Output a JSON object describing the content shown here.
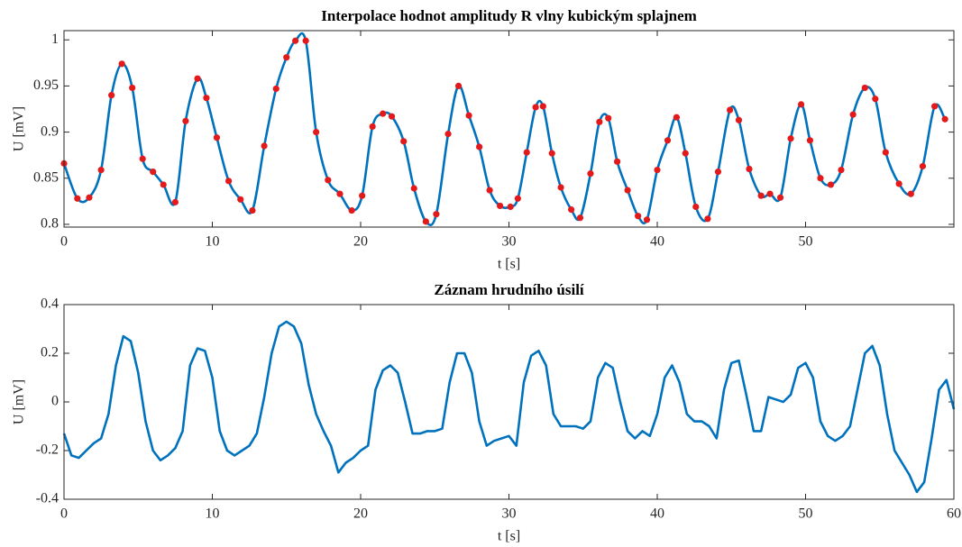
{
  "chart_data": [
    {
      "type": "line",
      "title": "Interpolace hodnot amplitudy R vlny kubickým splajnem",
      "xlabel": "t [s]",
      "ylabel": "U [mV]",
      "color": "#0072bd",
      "markers": true,
      "marker_color": "#e31a1c",
      "xlim": [
        0,
        60
      ],
      "xticks": [
        0,
        10,
        20,
        30,
        40,
        50
      ],
      "ylim": [
        0.797,
        1.01
      ],
      "yticks": [
        0.8,
        0.85,
        0.9,
        0.95,
        1
      ],
      "box": true,
      "x": [
        0,
        0.9,
        1.7,
        2.5,
        3.2,
        3.9,
        4.6,
        5.3,
        6.0,
        6.7,
        7.5,
        8.2,
        9.0,
        9.6,
        10.3,
        11.1,
        11.9,
        12.7,
        13.5,
        14.3,
        15.0,
        15.6,
        16.3,
        17.0,
        17.8,
        18.6,
        19.4,
        20.1,
        20.8,
        21.5,
        22.1,
        22.9,
        23.6,
        24.4,
        25.1,
        25.9,
        26.6,
        27.3,
        28.0,
        28.7,
        29.4,
        30.1,
        30.6,
        31.2,
        31.8,
        32.3,
        32.9,
        33.5,
        34.2,
        34.8,
        35.5,
        36.1,
        36.7,
        37.3,
        38.0,
        38.7,
        39.3,
        40.0,
        40.7,
        41.3,
        41.9,
        42.6,
        43.4,
        44.1,
        44.9,
        45.5,
        46.2,
        47.0,
        47.6,
        48.3,
        49.0,
        49.7,
        50.3,
        51.0,
        51.7,
        52.4,
        53.2,
        54.0,
        54.7,
        55.4,
        56.3,
        57.1,
        57.9,
        58.7,
        59.4
      ],
      "values": [
        0.866,
        0.828,
        0.829,
        0.859,
        0.94,
        0.974,
        0.948,
        0.871,
        0.857,
        0.843,
        0.824,
        0.912,
        0.958,
        0.937,
        0.894,
        0.847,
        0.827,
        0.815,
        0.885,
        0.947,
        0.981,
        0.999,
        0.999,
        0.9,
        0.848,
        0.833,
        0.815,
        0.831,
        0.906,
        0.92,
        0.917,
        0.89,
        0.839,
        0.803,
        0.811,
        0.898,
        0.95,
        0.918,
        0.884,
        0.837,
        0.82,
        0.819,
        0.828,
        0.878,
        0.927,
        0.928,
        0.877,
        0.84,
        0.816,
        0.807,
        0.855,
        0.911,
        0.915,
        0.868,
        0.837,
        0.809,
        0.805,
        0.859,
        0.891,
        0.916,
        0.877,
        0.819,
        0.806,
        0.857,
        0.924,
        0.913,
        0.86,
        0.831,
        0.833,
        0.829,
        0.893,
        0.93,
        0.891,
        0.85,
        0.843,
        0.859,
        0.919,
        0.948,
        0.936,
        0.878,
        0.844,
        0.833,
        0.863,
        0.928,
        0.914
      ]
    },
    {
      "type": "line",
      "title": "Záznam hrudního úsilí",
      "xlabel": "t [s]",
      "ylabel": "U [mV]",
      "color": "#0072bd",
      "markers": false,
      "xlim": [
        0,
        60
      ],
      "xticks": [
        0,
        10,
        20,
        30,
        40,
        50,
        60
      ],
      "ylim": [
        -0.4,
        0.4
      ],
      "yticks": [
        -0.4,
        -0.2,
        0,
        0.2,
        0.4
      ],
      "box": true,
      "x": [
        0,
        0.5,
        1,
        1.5,
        2,
        2.5,
        3,
        3.5,
        4,
        4.5,
        5,
        5.5,
        6,
        6.5,
        7,
        7.5,
        8,
        8.5,
        9,
        9.5,
        10,
        10.5,
        11,
        11.5,
        12,
        12.5,
        13,
        13.5,
        14,
        14.5,
        15,
        15.5,
        16,
        16.5,
        17,
        17.5,
        18,
        18.5,
        19,
        19.5,
        20,
        20.5,
        21,
        21.5,
        22,
        22.5,
        23,
        23.5,
        24,
        24.5,
        25,
        25.5,
        26,
        26.5,
        27,
        27.5,
        28,
        28.5,
        29,
        29.5,
        30,
        30.5,
        31,
        31.5,
        32,
        32.5,
        33,
        33.5,
        34,
        34.5,
        35,
        35.5,
        36,
        36.5,
        37,
        37.5,
        38,
        38.5,
        39,
        39.5,
        40,
        40.5,
        41,
        41.5,
        42,
        42.5,
        43,
        43.5,
        44,
        44.5,
        45,
        45.5,
        46,
        46.5,
        47,
        47.5,
        48,
        48.5,
        49,
        49.5,
        50,
        50.5,
        51,
        51.5,
        52,
        52.5,
        53,
        53.5,
        54,
        54.5,
        55,
        55.5,
        56,
        56.5,
        57,
        57.5,
        58,
        58.5,
        59,
        59.5,
        60
      ],
      "values": [
        -0.13,
        -0.22,
        -0.23,
        -0.2,
        -0.17,
        -0.15,
        -0.05,
        0.15,
        0.27,
        0.25,
        0.12,
        -0.08,
        -0.2,
        -0.24,
        -0.22,
        -0.19,
        -0.12,
        0.15,
        0.22,
        0.21,
        0.1,
        -0.12,
        -0.2,
        -0.22,
        -0.2,
        -0.18,
        -0.13,
        0.02,
        0.2,
        0.31,
        0.33,
        0.31,
        0.24,
        0.07,
        -0.05,
        -0.12,
        -0.18,
        -0.29,
        -0.25,
        -0.23,
        -0.2,
        -0.18,
        0.05,
        0.13,
        0.15,
        0.12,
        0.0,
        -0.13,
        -0.13,
        -0.12,
        -0.12,
        -0.11,
        0.08,
        0.2,
        0.2,
        0.12,
        -0.08,
        -0.18,
        -0.16,
        -0.15,
        -0.14,
        -0.18,
        0.08,
        0.19,
        0.21,
        0.15,
        -0.05,
        -0.1,
        -0.1,
        -0.1,
        -0.11,
        -0.08,
        0.1,
        0.16,
        0.14,
        0.0,
        -0.12,
        -0.15,
        -0.12,
        -0.14,
        -0.05,
        0.1,
        0.15,
        0.08,
        -0.05,
        -0.08,
        -0.08,
        -0.1,
        -0.15,
        0.05,
        0.16,
        0.17,
        0.03,
        -0.12,
        -0.12,
        0.02,
        0.01,
        0.0,
        0.03,
        0.14,
        0.16,
        0.1,
        -0.08,
        -0.14,
        -0.16,
        -0.14,
        -0.1,
        0.05,
        0.2,
        0.23,
        0.15,
        -0.05,
        -0.2,
        -0.25,
        -0.3,
        -0.37,
        -0.33,
        -0.15,
        0.05,
        0.09,
        -0.03
      ]
    }
  ]
}
